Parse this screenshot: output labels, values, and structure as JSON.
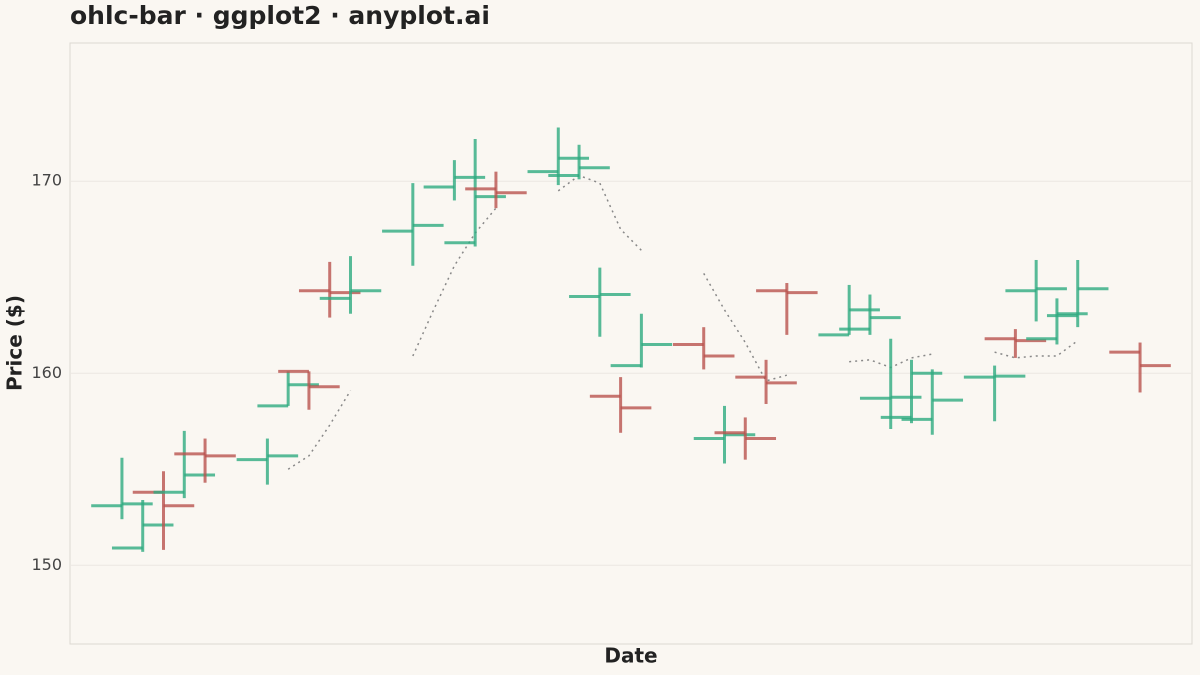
{
  "chart_data": {
    "type": "ohlc",
    "title": "ohlc-bar · ggplot2 · anyplot.ai",
    "xlabel": "Date",
    "ylabel": "Price ($)",
    "categories": [
      null,
      null,
      null,
      null,
      null,
      null,
      null,
      null,
      null,
      null,
      null,
      null,
      null,
      null,
      null,
      null,
      null,
      null,
      null,
      null,
      null,
      null,
      null,
      null,
      null,
      null,
      null,
      null,
      null,
      null,
      null,
      null,
      null,
      null,
      null,
      null,
      null,
      null,
      null,
      null,
      null,
      null,
      null,
      null,
      null,
      null,
      null,
      null,
      null,
      null
    ],
    "open": [
      153.1,
      150.9,
      153.8,
      153.8,
      155.8,
      null,
      null,
      155.5,
      158.3,
      160.1,
      164.3,
      163.9,
      null,
      null,
      167.4,
      null,
      169.7,
      166.8,
      169.6,
      null,
      null,
      170.5,
      170.3,
      164.0,
      158.8,
      160.4,
      null,
      null,
      161.5,
      156.6,
      156.9,
      159.8,
      164.3,
      null,
      null,
      162.0,
      162.3,
      158.7,
      157.7,
      157.6,
      null,
      null,
      159.8,
      161.8,
      164.3,
      161.8,
      163.0,
      null,
      null,
      161.1
    ],
    "high": [
      155.6,
      153.4,
      154.9,
      157.0,
      156.6,
      null,
      null,
      156.6,
      160.1,
      160.1,
      165.8,
      166.1,
      null,
      null,
      169.9,
      null,
      171.1,
      172.2,
      170.5,
      null,
      null,
      172.8,
      171.9,
      165.5,
      159.8,
      163.1,
      null,
      null,
      162.4,
      158.3,
      157.7,
      160.7,
      164.7,
      null,
      null,
      164.6,
      164.1,
      161.8,
      160.7,
      160.2,
      null,
      null,
      160.4,
      162.3,
      165.9,
      163.9,
      165.9,
      null,
      null,
      161.6
    ],
    "low": [
      152.4,
      150.7,
      150.8,
      153.5,
      154.3,
      null,
      null,
      154.2,
      158.3,
      158.1,
      162.9,
      163.1,
      null,
      null,
      165.6,
      null,
      169.0,
      166.6,
      168.6,
      null,
      null,
      169.8,
      170.1,
      161.9,
      156.9,
      160.3,
      null,
      null,
      160.2,
      155.3,
      155.5,
      158.4,
      162.0,
      null,
      null,
      162.0,
      162.0,
      157.1,
      157.4,
      156.8,
      null,
      null,
      157.5,
      160.8,
      162.7,
      161.5,
      162.4,
      null,
      null,
      159.0
    ],
    "close": [
      153.2,
      152.1,
      153.1,
      154.7,
      155.7,
      null,
      null,
      155.7,
      159.4,
      159.3,
      164.2,
      164.3,
      null,
      null,
      167.7,
      null,
      170.2,
      169.2,
      169.4,
      null,
      null,
      171.2,
      170.7,
      164.1,
      158.2,
      161.5,
      null,
      null,
      160.9,
      156.8,
      156.6,
      159.5,
      164.2,
      null,
      null,
      163.3,
      162.9,
      158.75,
      160.0,
      158.6,
      null,
      null,
      159.85,
      161.7,
      164.4,
      163.1,
      164.4,
      null,
      null,
      160.4
    ],
    "moving_average": [
      null,
      null,
      null,
      null,
      null,
      null,
      null,
      null,
      155.0,
      155.7,
      157.3,
      159.1,
      null,
      null,
      160.9,
      163.3,
      165.6,
      167.3,
      168.6,
      null,
      null,
      169.5,
      170.3,
      169.9,
      167.5,
      166.4,
      null,
      null,
      165.2,
      163.3,
      161.6,
      159.6,
      159.9,
      null,
      null,
      160.6,
      160.7,
      160.3,
      160.8,
      161.0,
      null,
      null,
      161.1,
      160.8,
      160.9,
      160.9,
      161.7,
      null,
      null,
      161.7
    ],
    "up_color": "#2eaa80",
    "down_color": "#b9524d",
    "ma_color": "#888888",
    "ylim": [
      145.9,
      177.2
    ],
    "yticks": [
      150,
      160,
      170
    ],
    "grid": true
  }
}
